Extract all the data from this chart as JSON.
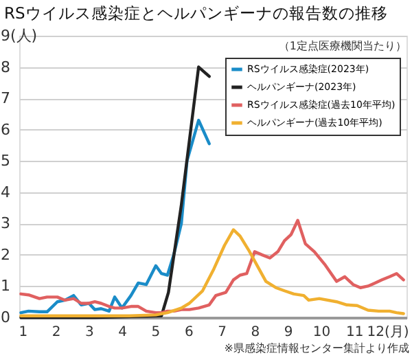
{
  "chart_data": {
    "type": "line",
    "title": "RSウイルス感染症とヘルパンギーナの報告数の推移",
    "annotations": [
      "（1定点医療機関当たり）",
      "※県感染症情報センター集計より作成"
    ],
    "xlim": [
      0.9,
      12.58
    ],
    "xticks": [
      1,
      2,
      3,
      4,
      5,
      6,
      7,
      8,
      9,
      10,
      11,
      {
        "value": 12,
        "label": "12(月)"
      }
    ],
    "ylim": [
      0,
      9
    ],
    "yticks": [
      0,
      1,
      2,
      3,
      4,
      5,
      6,
      7,
      8,
      {
        "value": 9,
        "label": "9(人)"
      }
    ],
    "grid": "y",
    "legend": "top right",
    "line_style": "solid",
    "marker": "none",
    "series": [
      {
        "name": "RSウイルス感染症(2023年)",
        "color": "#1a8cc8",
        "x": [
          0.95,
          1.18,
          1.51,
          1.74,
          2.05,
          2.28,
          2.54,
          2.77,
          3.0,
          3.18,
          3.37,
          3.61,
          3.78,
          4.0,
          4.27,
          4.49,
          4.73,
          5.02,
          5.19,
          5.37,
          5.56,
          5.79,
          5.96,
          6.31,
          6.63
        ],
        "values": [
          0.15,
          0.2,
          0.18,
          0.18,
          0.5,
          0.55,
          0.7,
          0.4,
          0.45,
          0.25,
          0.28,
          0.2,
          0.65,
          0.3,
          0.7,
          1.1,
          1.05,
          1.65,
          1.4,
          1.35,
          2.0,
          3.0,
          5.0,
          6.3,
          5.55
        ]
      },
      {
        "name": "ヘルパンギーナ(2023年)",
        "color": "#222222",
        "x": [
          0.95,
          3.2,
          5.19,
          5.4,
          5.79,
          6.31,
          6.63
        ],
        "values": [
          0.0,
          0.0,
          0.05,
          0.8,
          3.6,
          8.0,
          7.7
        ]
      },
      {
        "name": "RSウイルス感染症(過去10年平均)",
        "color": "#e06060",
        "x": [
          0.95,
          1.18,
          1.51,
          1.74,
          2.05,
          2.28,
          2.54,
          2.77,
          3.0,
          3.18,
          3.37,
          3.61,
          3.78,
          4.0,
          4.27,
          4.49,
          4.73,
          5.02,
          5.19,
          5.37,
          5.56,
          5.79,
          6.03,
          6.31,
          6.63,
          6.83,
          7.13,
          7.36,
          7.56,
          7.76,
          8.0,
          8.22,
          8.46,
          8.7,
          8.9,
          9.1,
          9.3,
          9.53,
          9.8,
          10.11,
          10.47,
          10.72,
          10.97,
          11.19,
          11.42,
          11.63,
          11.84,
          12.07,
          12.28,
          12.49
        ],
        "values": [
          0.75,
          0.72,
          0.6,
          0.65,
          0.65,
          0.55,
          0.6,
          0.45,
          0.45,
          0.5,
          0.45,
          0.35,
          0.3,
          0.3,
          0.35,
          0.35,
          0.2,
          0.15,
          0.15,
          0.2,
          0.2,
          0.25,
          0.25,
          0.3,
          0.4,
          0.7,
          0.8,
          1.2,
          1.35,
          1.4,
          2.1,
          2.0,
          1.9,
          2.1,
          2.45,
          2.65,
          3.1,
          2.35,
          2.1,
          1.7,
          1.15,
          1.3,
          1.05,
          0.95,
          1.0,
          1.1,
          1.2,
          1.3,
          1.4,
          1.2
        ]
      },
      {
        "name": "ヘルパンギーナ(過去10年平均)",
        "color": "#f0b030",
        "x": [
          0.95,
          1.97,
          3.2,
          4.22,
          5.02,
          5.37,
          5.79,
          6.03,
          6.43,
          6.77,
          7.09,
          7.36,
          7.56,
          7.82,
          8.08,
          8.34,
          8.64,
          8.9,
          9.18,
          9.48,
          9.63,
          9.95,
          10.47,
          10.78,
          11.09,
          11.42,
          11.74,
          12.07,
          12.28,
          12.49
        ],
        "values": [
          0.05,
          0.05,
          0.05,
          0.05,
          0.08,
          0.15,
          0.3,
          0.45,
          0.85,
          1.55,
          2.3,
          2.8,
          2.6,
          2.15,
          1.65,
          1.15,
          0.95,
          0.85,
          0.75,
          0.7,
          0.55,
          0.6,
          0.5,
          0.4,
          0.38,
          0.23,
          0.2,
          0.2,
          0.15,
          0.12
        ]
      }
    ]
  }
}
